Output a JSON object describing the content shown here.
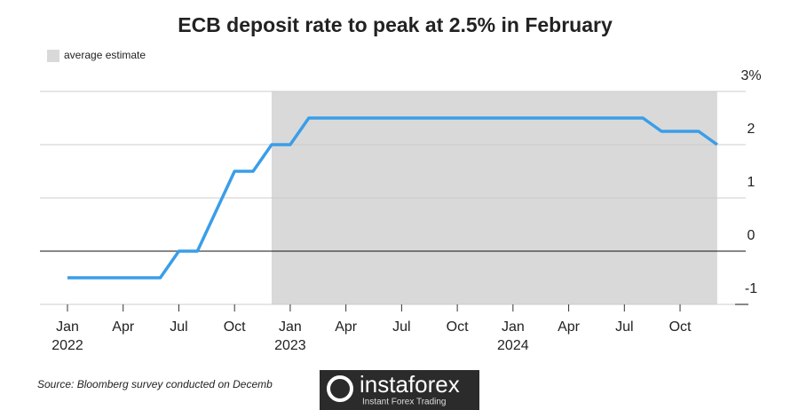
{
  "chart_data": {
    "type": "line",
    "title": "ECB deposit rate to peak at 2.5% in February",
    "x": [
      "2022-01",
      "2022-02",
      "2022-03",
      "2022-04",
      "2022-05",
      "2022-06",
      "2022-07",
      "2022-08",
      "2022-09",
      "2022-10",
      "2022-11",
      "2022-12",
      "2023-01",
      "2023-02",
      "2023-03",
      "2023-04",
      "2023-05",
      "2023-06",
      "2023-07",
      "2023-08",
      "2023-09",
      "2023-10",
      "2023-11",
      "2023-12",
      "2024-01",
      "2024-02",
      "2024-03",
      "2024-04",
      "2024-05",
      "2024-06",
      "2024-07",
      "2024-08",
      "2024-09",
      "2024-10",
      "2024-11",
      "2024-12"
    ],
    "series": [
      {
        "name": "ECB deposit rate",
        "color": "#3a9ee8",
        "values": [
          -0.5,
          -0.5,
          -0.5,
          -0.5,
          -0.5,
          -0.5,
          0,
          0,
          0.75,
          1.5,
          1.5,
          2,
          2,
          2.5,
          2.5,
          2.5,
          2.5,
          2.5,
          2.5,
          2.5,
          2.5,
          2.5,
          2.5,
          2.5,
          2.5,
          2.5,
          2.5,
          2.5,
          2.5,
          2.5,
          2.5,
          2.5,
          2.25,
          2.25,
          2.25,
          2
        ]
      }
    ],
    "shade": {
      "from": "2022-12",
      "to": "2024-12",
      "label": "average estimate",
      "color": "#d9d9d9"
    },
    "ylim": [
      -1,
      3
    ],
    "yticks": [
      -1,
      0,
      1,
      2,
      {
        "value": 3,
        "label": "3%"
      }
    ],
    "xticks": [
      {
        "value": "2022-01",
        "label": "Jan"
      },
      {
        "value": "2022-04",
        "label": "Apr"
      },
      {
        "value": "2022-07",
        "label": "Jul"
      },
      {
        "value": "2022-10",
        "label": "Oct"
      },
      {
        "value": "2023-01",
        "label": "Jan"
      },
      {
        "value": "2023-04",
        "label": "Apr"
      },
      {
        "value": "2023-07",
        "label": "Jul"
      },
      {
        "value": "2023-10",
        "label": "Oct"
      },
      {
        "value": "2024-01",
        "label": "Jan"
      },
      {
        "value": "2024-04",
        "label": "Apr"
      },
      {
        "value": "2024-07",
        "label": "Jul"
      },
      {
        "value": "2024-10",
        "label": "Oct"
      }
    ],
    "xyears": [
      {
        "value": "2022-01",
        "label": "2022"
      },
      {
        "value": "2023-01",
        "label": "2023"
      },
      {
        "value": "2024-01",
        "label": "2024"
      }
    ],
    "grid": true,
    "source": "Source: Bloomberg survey conducted on Decemb"
  },
  "watermark": {
    "brand": "instaforex",
    "tagline": "Instant Forex Trading"
  }
}
